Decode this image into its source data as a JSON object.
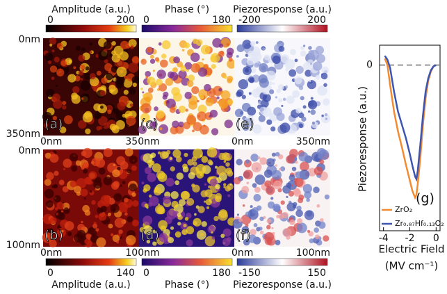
{
  "figure": {
    "top": {
      "colorbars": [
        {
          "title": "Amplitude (a.u.)",
          "ticks": [
            0,
            200
          ]
        },
        {
          "title": "Phase (°)",
          "ticks": [
            0,
            180
          ]
        },
        {
          "title": "Piezoresponse (a.u.)",
          "ticks": [
            -200,
            200
          ]
        }
      ],
      "y_labels": [
        "0nm",
        "350nm"
      ],
      "x_labels": [
        "0nm",
        "350nm",
        "0nm",
        "350nm"
      ],
      "panels": [
        "(a)",
        "(c)",
        "(e)"
      ]
    },
    "bottom": {
      "colorbars": [
        {
          "title": "Amplitude (a.u.)",
          "ticks": [
            0,
            140
          ]
        },
        {
          "title": "Phase (°)",
          "ticks": [
            0,
            180
          ]
        },
        {
          "title": "Piezoresponse (a.u.)",
          "ticks": [
            -150,
            150
          ]
        }
      ],
      "y_labels": [
        "0nm",
        "100nm"
      ],
      "x_labels": [
        "0nm",
        "100nm",
        "0nm",
        "100nm"
      ],
      "panels": [
        "(b)",
        "(d)",
        "(f)"
      ]
    }
  },
  "chart_data": {
    "type": "line",
    "panel_label": "(g)",
    "x_label": "Electric Field",
    "x_unit": "(MV cm⁻¹)",
    "y_label": "Piezoresponse (a.u.)",
    "x": [
      -3.9,
      -3.7,
      -3.5,
      -3.2,
      -2.9,
      -2.6,
      -2.3,
      -2.0,
      -1.8,
      -1.6,
      -1.5,
      -1.4,
      -1.2,
      -1.0,
      -0.8,
      -0.6,
      -0.4,
      -0.2,
      0
    ],
    "series": [
      {
        "name": "ZrO₂",
        "color": "#f28a30",
        "values": [
          0.05,
          0.0,
          -0.15,
          -0.35,
          -0.5,
          -0.62,
          -0.75,
          -0.87,
          -0.95,
          -1.0,
          -0.98,
          -0.9,
          -0.7,
          -0.45,
          -0.25,
          -0.12,
          -0.05,
          -0.01,
          0.0
        ]
      },
      {
        "name": "Zr₀.₈₇Hf₀.₁₃O₂",
        "color": "#3d55b0",
        "values": [
          0.07,
          0.04,
          -0.02,
          -0.2,
          -0.35,
          -0.45,
          -0.55,
          -0.67,
          -0.76,
          -0.84,
          -0.86,
          -0.8,
          -0.6,
          -0.38,
          -0.2,
          -0.1,
          -0.04,
          -0.01,
          0.0
        ]
      }
    ],
    "xlim": [
      -4.3,
      0.3
    ],
    "xticks": [
      -4,
      -2,
      0
    ],
    "ylim": [
      -1.25,
      0.15
    ],
    "yticks": [
      0
    ],
    "zero_line": "dashed",
    "legend": "lower-left"
  }
}
